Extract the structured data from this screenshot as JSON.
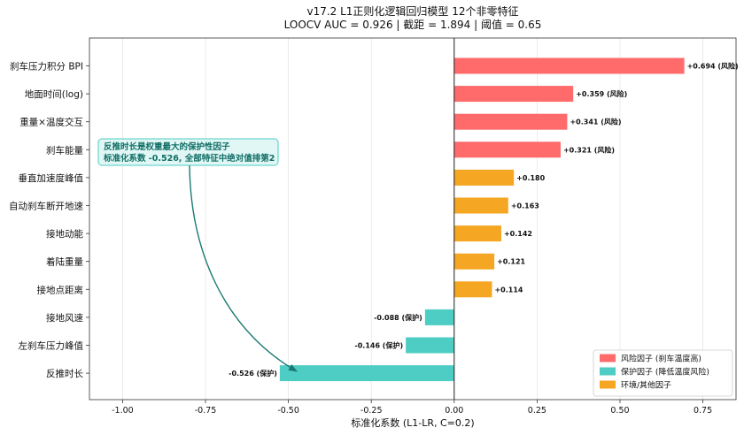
{
  "chart_data": {
    "type": "bar",
    "orientation": "horizontal",
    "title": "v17.2 L1正则化逻辑回归模型 12个非零特征",
    "subtitle": "LOOCV AUC = 0.926 | 截距 = 1.894 | 阈值 = 0.65",
    "xlabel": "标准化系数 (L1-LR, C=0.2)",
    "ylabel": "",
    "xlim": [
      -1.1,
      0.85
    ],
    "xticks": [
      -1.0,
      -0.75,
      -0.5,
      -0.25,
      0.0,
      0.25,
      0.5,
      0.75
    ],
    "xtick_labels": [
      "-1.00",
      "-0.75",
      "-0.50",
      "-0.25",
      "0.00",
      "0.25",
      "0.50",
      "0.75"
    ],
    "grid": "vertical",
    "categories": [
      "刹车压力积分 BPI",
      "地面时间(log)",
      "重量×温度交互",
      "刹车能量",
      "垂直加速度峰值",
      "自动刹车断开地速",
      "接地动能",
      "着陆重量",
      "接地点距离",
      "接地风速",
      "左刹车压力峰值",
      "反推时长"
    ],
    "values": [
      0.694,
      0.359,
      0.341,
      0.321,
      0.18,
      0.163,
      0.142,
      0.121,
      0.114,
      -0.088,
      -0.146,
      -0.526
    ],
    "value_labels": [
      "+0.694 (风险)",
      "+0.359 (风险)",
      "+0.341 (风险)",
      "+0.321 (风险)",
      "+0.180",
      "+0.163",
      "+0.142",
      "+0.121",
      "+0.114",
      "-0.088 (保护)",
      "-0.146 (保护)",
      "-0.526 (保护)"
    ],
    "groups": [
      "risk",
      "risk",
      "risk",
      "risk",
      "env",
      "env",
      "env",
      "env",
      "env",
      "protect",
      "protect",
      "protect"
    ],
    "colors": {
      "risk": "#ff6b6b",
      "protect": "#4ecdc4",
      "env": "#f5a623"
    },
    "legend": {
      "placement": "bottom-right",
      "items": [
        {
          "key": "risk",
          "label": "风险因子 (刹车温度高)"
        },
        {
          "key": "protect",
          "label": "保护因子 (降低温度风险)"
        },
        {
          "key": "env",
          "label": "环境/其他因子"
        }
      ]
    },
    "annotation": {
      "lines": [
        "反推时长是权重最大的保护性因子",
        "标准化系数 -0.526, 全部特征中绝对值排第2"
      ],
      "target_category": "反推时长",
      "box_fill": "#e0f7f5",
      "box_stroke": "#4ecdc4",
      "arrow_color": "#1a7a73"
    }
  }
}
